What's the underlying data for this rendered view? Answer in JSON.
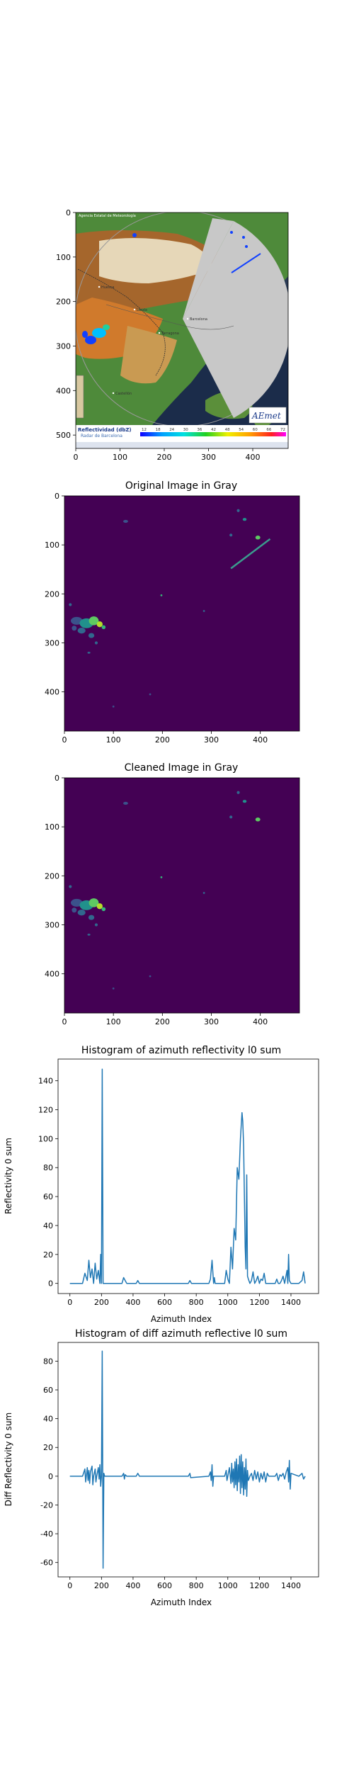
{
  "chart_data": [
    {
      "type": "image",
      "title": "",
      "xticks": [
        0,
        100,
        200,
        300,
        400
      ],
      "yticks": [
        0,
        100,
        200,
        300,
        400,
        500
      ],
      "xlim": [
        0,
        480
      ],
      "ylim": [
        530,
        0
      ],
      "map_text": {
        "agency": "Agencia Estatal de Meteorología",
        "legend_title": "Reflectividad (dbZ)",
        "radar_name": "Radar de Barcelona",
        "legend_values": [
          "12",
          "18",
          "24",
          "30",
          "36",
          "42",
          "48",
          "54",
          "60",
          "66",
          "72"
        ],
        "brand": "AEmet",
        "cities": [
          "Huesca",
          "Lleida",
          "Barcelona",
          "Tarragona",
          "Castellón"
        ]
      }
    },
    {
      "type": "heatmap",
      "title": "Original Image in Gray",
      "xticks": [
        0,
        100,
        200,
        300,
        400
      ],
      "yticks": [
        0,
        100,
        200,
        300,
        400
      ],
      "xlim": [
        0,
        480
      ],
      "ylim": [
        480,
        0
      ],
      "colormap": "viridis"
    },
    {
      "type": "heatmap",
      "title": "Cleaned Image in Gray",
      "xticks": [
        0,
        100,
        200,
        300,
        400
      ],
      "yticks": [
        0,
        100,
        200,
        300,
        400
      ],
      "xlim": [
        0,
        480
      ],
      "ylim": [
        480,
        0
      ],
      "colormap": "viridis"
    },
    {
      "type": "line",
      "title": "Histogram of azimuth reflectivity l0 sum",
      "xlabel": "Azimuth Index",
      "ylabel": "Reflectivity 0 sum",
      "xlim": [
        -75,
        1575
      ],
      "ylim": [
        -7,
        155
      ],
      "xticks": [
        0,
        200,
        400,
        600,
        800,
        1000,
        1200,
        1400
      ],
      "yticks": [
        0,
        20,
        40,
        60,
        80,
        100,
        120,
        140
      ],
      "color": "#1f77b4",
      "x": [
        0,
        80,
        95,
        110,
        120,
        130,
        140,
        150,
        160,
        170,
        180,
        190,
        195,
        200,
        205,
        210,
        230,
        330,
        340,
        350,
        360,
        420,
        430,
        440,
        750,
        760,
        770,
        880,
        890,
        900,
        910,
        915,
        920,
        980,
        990,
        1000,
        1010,
        1020,
        1030,
        1040,
        1050,
        1060,
        1070,
        1080,
        1090,
        1095,
        1100,
        1105,
        1110,
        1115,
        1120,
        1125,
        1130,
        1140,
        1150,
        1160,
        1170,
        1180,
        1190,
        1200,
        1210,
        1220,
        1230,
        1240,
        1250,
        1260,
        1300,
        1310,
        1320,
        1330,
        1340,
        1350,
        1360,
        1370,
        1375,
        1380,
        1385,
        1390,
        1400,
        1450,
        1470,
        1480,
        1490
      ],
      "y": [
        0,
        0,
        7,
        2,
        16,
        4,
        10,
        0,
        14,
        3,
        9,
        0,
        20,
        0,
        148,
        0,
        0,
        0,
        4,
        2,
        0,
        0,
        2,
        0,
        0,
        2,
        0,
        0,
        3,
        16,
        0,
        4,
        0,
        0,
        9,
        3,
        0,
        25,
        10,
        38,
        30,
        80,
        72,
        100,
        118,
        112,
        95,
        60,
        25,
        10,
        75,
        5,
        3,
        0,
        2,
        8,
        0,
        2,
        5,
        0,
        3,
        2,
        7,
        0,
        0,
        0,
        0,
        3,
        0,
        0,
        2,
        5,
        0,
        6,
        9,
        0,
        20,
        2,
        0,
        0,
        2,
        8,
        0
      ]
    },
    {
      "type": "line",
      "title": "Histogram of diff azimuth reflective l0 sum",
      "xlabel": "Azimuth Index",
      "ylabel": "Diff Reflectivity 0 sum",
      "xlim": [
        -75,
        1575
      ],
      "ylim": [
        -70,
        93
      ],
      "xticks": [
        0,
        200,
        400,
        600,
        800,
        1000,
        1200,
        1400
      ],
      "yticks": [
        -60,
        -40,
        -20,
        0,
        20,
        40,
        60,
        80
      ],
      "color": "#1f77b4",
      "x": [
        0,
        80,
        95,
        100,
        110,
        115,
        120,
        125,
        130,
        140,
        145,
        150,
        160,
        165,
        170,
        180,
        185,
        190,
        195,
        200,
        205,
        210,
        215,
        220,
        330,
        340,
        345,
        350,
        360,
        420,
        430,
        440,
        750,
        760,
        765,
        880,
        890,
        895,
        900,
        905,
        910,
        980,
        990,
        995,
        1000,
        1010,
        1020,
        1025,
        1030,
        1035,
        1040,
        1045,
        1050,
        1055,
        1060,
        1065,
        1070,
        1075,
        1080,
        1085,
        1090,
        1095,
        1100,
        1105,
        1110,
        1115,
        1120,
        1125,
        1130,
        1140,
        1150,
        1160,
        1170,
        1180,
        1190,
        1200,
        1210,
        1220,
        1230,
        1240,
        1250,
        1260,
        1300,
        1310,
        1320,
        1330,
        1340,
        1350,
        1360,
        1370,
        1380,
        1385,
        1390,
        1395,
        1400,
        1450,
        1470,
        1480,
        1490
      ],
      "y": [
        0,
        0,
        5,
        -4,
        6,
        -3,
        4,
        -5,
        3,
        7,
        -6,
        0,
        5,
        -4,
        0,
        6,
        -2,
        8,
        -7,
        0,
        87,
        -64,
        2,
        0,
        0,
        2,
        -2,
        1,
        0,
        0,
        2,
        0,
        0,
        2,
        -1,
        0,
        3,
        -3,
        8,
        -7,
        0,
        0,
        4,
        -3,
        0,
        6,
        -5,
        9,
        -4,
        5,
        -8,
        10,
        -6,
        12,
        -10,
        8,
        -4,
        14,
        -12,
        15,
        -8,
        10,
        -13,
        6,
        -9,
        12,
        -14,
        4,
        -3,
        0,
        2,
        -3,
        4,
        -2,
        3,
        -4,
        2,
        -2,
        3,
        -4,
        2,
        0,
        0,
        2,
        -3,
        1,
        0,
        2,
        -2,
        3,
        6,
        -4,
        11,
        -9,
        2,
        0,
        2,
        -2,
        0
      ]
    }
  ]
}
